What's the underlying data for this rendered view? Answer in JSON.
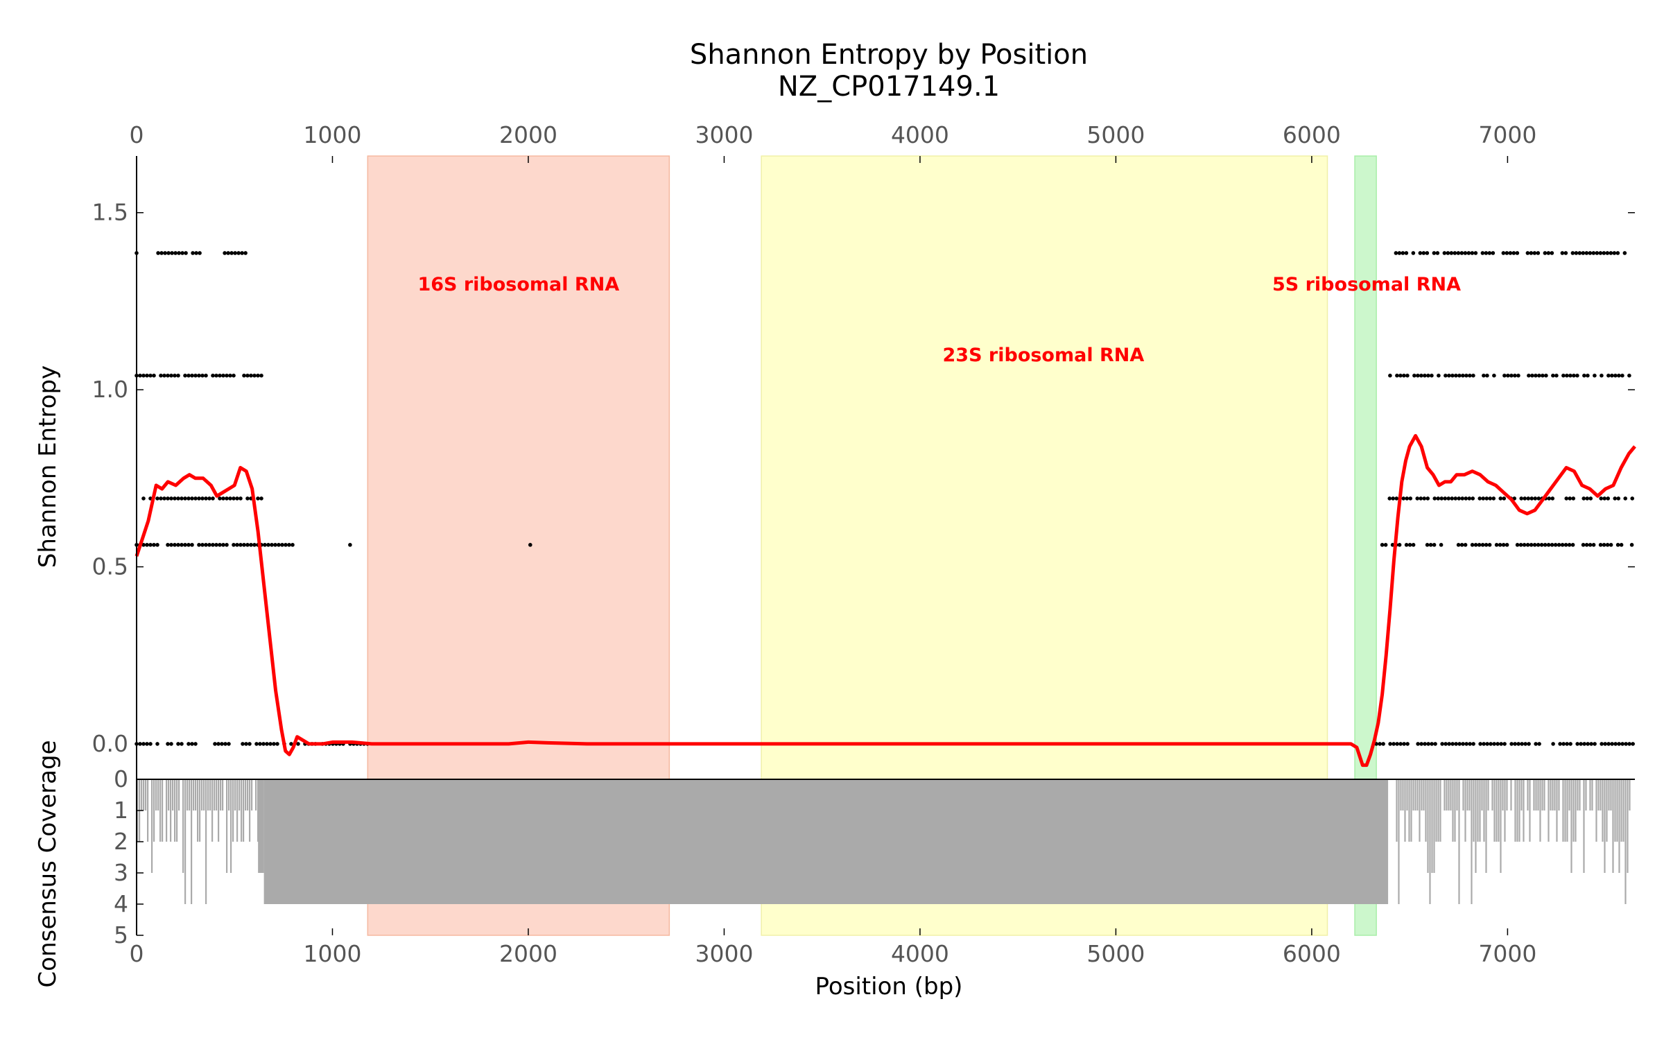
{
  "chart_data": {
    "type": "scatter",
    "title": "Shannon Entropy by Position",
    "subtitle": "NZ_CP017149.1",
    "xlabel": "Position (bp)",
    "ylabel": "Shannon Entropy",
    "ylabel_coverage": "Consensus Coverage",
    "xlim": [
      0,
      7650
    ],
    "ylim": [
      -0.1,
      1.66
    ],
    "coverage_lim": [
      0,
      5
    ],
    "x_ticks": [
      0,
      1000,
      2000,
      3000,
      4000,
      5000,
      6000,
      7000
    ],
    "y_ticks": [
      "0.0",
      "0.5",
      "1.0",
      "1.5"
    ],
    "y_tick_values": [
      0.0,
      0.5,
      1.0,
      1.5
    ],
    "coverage_ticks": [
      "0",
      "1",
      "2",
      "3",
      "4",
      "5"
    ],
    "grid": false,
    "regions": [
      {
        "name": "16S ribosomal RNA",
        "start": 1180,
        "end": 2720,
        "color": "#fdd8cc",
        "border": "#f5b8a0",
        "label_x": 1950,
        "label_y": 1.3
      },
      {
        "name": "23S ribosomal RNA",
        "start": 3190,
        "end": 6080,
        "color": "#ffffcc",
        "border": "#f0f0a8",
        "label_x": 4630,
        "label_y": 1.1
      },
      {
        "name": "5S ribosomal RNA",
        "start": 6220,
        "end": 6330,
        "color": "#ccf7cc",
        "border": "#a8eea8",
        "label_x": 6280,
        "label_y": 1.3
      }
    ],
    "region_label_color": "#ff0000",
    "entropy_points_color": "#000000",
    "smoothed_line_color": "#ff0000",
    "coverage_bar_color": "#aaaaaa",
    "entropy_points": [
      {
        "y": 1.386,
        "segments": [
          [
            0,
            15
          ],
          [
            110,
            330
          ],
          [
            450,
            580
          ],
          [
            6430,
            7630
          ]
        ]
      },
      {
        "y": 1.04,
        "segments": [
          [
            0,
            650
          ],
          [
            6400,
            7650
          ]
        ]
      },
      {
        "y": 0.693,
        "segments": [
          [
            0,
            650
          ],
          [
            6380,
            7650
          ]
        ]
      },
      {
        "y": 0.562,
        "segments": [
          [
            0,
            820
          ],
          [
            1090,
            1100
          ],
          [
            2010,
            2020
          ],
          [
            6360,
            7650
          ]
        ]
      },
      {
        "y": 0.0,
        "segments": [
          [
            0,
            310
          ],
          [
            400,
            1180
          ],
          [
            6330,
            7650
          ]
        ]
      }
    ],
    "smoothed_entropy": {
      "x": [
        0,
        30,
        60,
        100,
        130,
        160,
        200,
        240,
        270,
        300,
        340,
        380,
        410,
        440,
        470,
        500,
        530,
        560,
        590,
        620,
        650,
        680,
        710,
        740,
        760,
        780,
        800,
        820,
        850,
        880,
        900,
        950,
        1000,
        1100,
        1200,
        1500,
        1900,
        2000,
        2100,
        2300,
        2700,
        3200,
        4000,
        5000,
        6000,
        6200,
        6230,
        6260,
        6280,
        6300,
        6320,
        6340,
        6360,
        6380,
        6400,
        6420,
        6440,
        6460,
        6480,
        6500,
        6530,
        6560,
        6590,
        6620,
        6650,
        6680,
        6710,
        6740,
        6780,
        6820,
        6860,
        6900,
        6940,
        6980,
        7020,
        7060,
        7100,
        7140,
        7180,
        7220,
        7260,
        7300,
        7340,
        7380,
        7420,
        7460,
        7500,
        7540,
        7580,
        7620,
        7650
      ],
      "y": [
        0.53,
        0.58,
        0.63,
        0.73,
        0.72,
        0.74,
        0.73,
        0.75,
        0.76,
        0.75,
        0.75,
        0.73,
        0.7,
        0.71,
        0.72,
        0.73,
        0.78,
        0.77,
        0.72,
        0.6,
        0.45,
        0.3,
        0.15,
        0.04,
        -0.02,
        -0.03,
        -0.01,
        0.02,
        0.01,
        0.0,
        0.0,
        0.0,
        0.005,
        0.005,
        0.0,
        0.0,
        0.0,
        0.005,
        0.003,
        0.0,
        0.0,
        0.0,
        0.0,
        0.0,
        0.0,
        0.0,
        -0.01,
        -0.06,
        -0.06,
        -0.03,
        0.01,
        0.06,
        0.14,
        0.25,
        0.38,
        0.52,
        0.64,
        0.74,
        0.8,
        0.84,
        0.87,
        0.84,
        0.78,
        0.76,
        0.73,
        0.74,
        0.74,
        0.76,
        0.76,
        0.77,
        0.76,
        0.74,
        0.73,
        0.71,
        0.69,
        0.66,
        0.65,
        0.66,
        0.69,
        0.72,
        0.75,
        0.78,
        0.77,
        0.73,
        0.72,
        0.7,
        0.72,
        0.73,
        0.78,
        0.82,
        0.84
      ]
    },
    "coverage": [
      {
        "start": 0,
        "end": 620,
        "value": 2,
        "sparse": true
      },
      {
        "start": 620,
        "end": 650,
        "value": 3
      },
      {
        "start": 650,
        "end": 6390,
        "value": 4
      },
      {
        "start": 6390,
        "end": 6430,
        "value": 0
      },
      {
        "start": 6430,
        "end": 7630,
        "value": 2,
        "sparse": true
      }
    ]
  }
}
